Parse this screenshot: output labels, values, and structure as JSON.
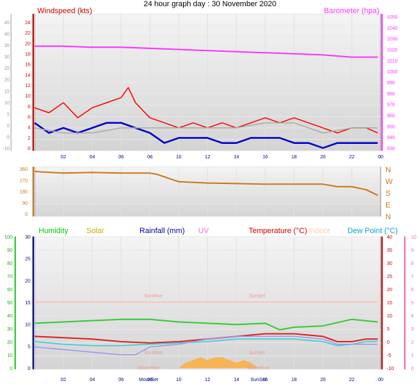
{
  "title": "24 hour graph day : 30 November 2020",
  "chart_data": [
    {
      "type": "line",
      "labels": {
        "left": "Windspeed (kts)",
        "right": "Barometer (hpa)"
      },
      "x_ticks": [
        "02",
        "04",
        "06",
        "08",
        "10",
        "12",
        "14",
        "16",
        "18",
        "20",
        "22",
        "00"
      ],
      "y_ticks_outer": [
        "45",
        "40",
        "35",
        "30",
        "25",
        "20",
        "15",
        "10",
        "5",
        "0",
        "-5",
        "-10"
      ],
      "y_ticks_wind": [
        "24",
        "22",
        "20",
        "18",
        "16",
        "14",
        "12",
        "10",
        "8",
        "6",
        "4",
        "2",
        "0"
      ],
      "y_ticks_baro": [
        "1050",
        "1040",
        "1030",
        "1020",
        "1010",
        "1000",
        "990",
        "980",
        "970",
        "960",
        "950",
        "940",
        "930"
      ],
      "ylim_wind": [
        0,
        25
      ],
      "ylim_baro": [
        930,
        1050
      ],
      "series": [
        {
          "name": "Barometer (hpa)",
          "color": "#ff33ff",
          "x": [
            0,
            2,
            4,
            6,
            8,
            10,
            12,
            14,
            16,
            18,
            20,
            22,
            23.8
          ],
          "values": [
            1023,
            1023,
            1022,
            1022,
            1021,
            1020,
            1019,
            1018,
            1017,
            1016,
            1015,
            1013,
            1013
          ]
        },
        {
          "color": "#ff0000",
          "x": [
            0,
            1,
            2,
            3,
            4,
            5,
            6,
            6.5,
            7,
            8,
            9,
            10,
            11,
            12,
            13,
            14,
            15,
            16,
            17,
            18,
            19,
            20,
            21,
            22,
            23,
            23.8
          ],
          "values": [
            8,
            7,
            9,
            6,
            8,
            9,
            10,
            12,
            9,
            6,
            5,
            4,
            5,
            4,
            5,
            4,
            5,
            6,
            5,
            6,
            5,
            4,
            3,
            4,
            4,
            3
          ]
        },
        {
          "color": "#0000cc",
          "x": [
            0,
            1,
            2,
            3,
            4,
            5,
            6,
            7,
            8,
            9,
            10,
            11,
            12,
            13,
            14,
            15,
            16,
            17,
            18,
            19,
            20,
            21,
            22,
            23,
            23.8
          ],
          "values": [
            5,
            3,
            4,
            3,
            4,
            5,
            5,
            4,
            3,
            1,
            2,
            2,
            2,
            1,
            1,
            2,
            2,
            2,
            1,
            1,
            0,
            1,
            1,
            1,
            1
          ]
        },
        {
          "color": "#aaaaaa",
          "x": [
            0,
            2,
            4,
            6,
            8,
            10,
            12,
            14,
            16,
            18,
            20,
            22,
            23.8
          ],
          "values": [
            4,
            3,
            3,
            4,
            4,
            4,
            4,
            4,
            5,
            5,
            3,
            4,
            4
          ]
        }
      ]
    },
    {
      "type": "line",
      "x_ticks": [
        "02",
        "04",
        "06",
        "08",
        "10",
        "12",
        "14",
        "16",
        "18",
        "20",
        "22",
        "00"
      ],
      "y_ticks": [
        "360",
        "270",
        "180",
        "90",
        "0"
      ],
      "directions": [
        "N",
        "W",
        "S",
        "E",
        "N"
      ],
      "ylim": [
        0,
        360
      ],
      "series": [
        {
          "color": "#cc7722",
          "x": [
            0,
            0.5,
            2,
            4,
            6,
            8,
            8.5,
            10,
            12,
            14,
            16,
            18,
            20,
            21,
            22,
            23,
            23.8
          ],
          "values": [
            345,
            340,
            330,
            335,
            330,
            330,
            320,
            260,
            250,
            245,
            240,
            240,
            240,
            220,
            220,
            195,
            150
          ]
        }
      ]
    },
    {
      "type": "line",
      "labels": {
        "humidity": "Humidity",
        "solar": "Solar",
        "rainfall": "Rainfall (mm)",
        "uv": "UV",
        "temperature": "Temperature (°C)",
        "indoor": "Indoor",
        "dewpoint": "Dew Point (°C)"
      },
      "label_colors": {
        "humidity": "#00cc00",
        "solar": "#ccaa00",
        "rainfall": "#000099",
        "uv": "#ff66cc",
        "temperature": "#cc0000",
        "indoor": "#ffccaa",
        "dewpoint": "#00aacc"
      },
      "x_ticks": [
        "02",
        "04",
        "06",
        "08",
        "10",
        "12",
        "14",
        "16",
        "18",
        "20",
        "22",
        "00"
      ],
      "annotations": {
        "moonset": "MoonSet",
        "sunset": "SunSet",
        "sunrise": "SunRise",
        "moonrise": "MoonRise"
      },
      "y_ticks_hum": [
        "100",
        "90",
        "80",
        "70",
        "60",
        "50",
        "40",
        "30",
        "20",
        "10",
        "0"
      ],
      "y_ticks_rain": [
        "30",
        "25",
        "20",
        "15",
        "10",
        "5",
        "0"
      ],
      "y_ticks_temp": [
        "40",
        "35",
        "30",
        "25",
        "20",
        "15",
        "10",
        "5",
        "0",
        "-5",
        "-10"
      ],
      "y_ticks_uv": [
        "10",
        "9",
        "8",
        "7",
        "6",
        "5",
        "4",
        "3",
        "2",
        "1",
        "0"
      ],
      "ylim_temp": [
        -10,
        40
      ],
      "series": [
        {
          "name": "Humidity",
          "color": "#33cc33",
          "x": [
            0,
            2,
            4,
            6,
            8,
            10,
            12,
            14,
            16,
            17,
            18,
            20,
            22,
            23.8
          ],
          "values": [
            34,
            35,
            36,
            37,
            37,
            35,
            34,
            33,
            34,
            29,
            31,
            32,
            37,
            35
          ]
        },
        {
          "name": "Indoor",
          "color": "#ffbbaa",
          "x": [
            0,
            23.8
          ],
          "values": [
            15,
            15
          ]
        },
        {
          "name": "Temperature (°C)",
          "color": "#dd2222",
          "x": [
            0,
            2,
            4,
            6,
            8,
            10,
            12,
            14,
            16,
            18,
            20,
            21,
            22,
            23,
            23.8
          ],
          "values": [
            2,
            1.5,
            1,
            0,
            -0.5,
            0,
            1,
            2,
            3,
            3,
            2,
            0,
            0,
            1,
            1
          ]
        },
        {
          "name": "Dew Point (°C)",
          "color": "#33ccdd",
          "x": [
            0,
            2,
            4,
            6,
            8,
            10,
            12,
            14,
            16,
            18,
            20,
            21,
            22,
            23,
            23.8
          ],
          "values": [
            0,
            -1,
            -1.5,
            -1.5,
            -1,
            -0.5,
            0,
            1,
            1,
            1,
            0,
            -1.5,
            -1,
            0,
            0
          ]
        },
        {
          "color": "#9999ee",
          "x": [
            0,
            2,
            4,
            6,
            7,
            8,
            10,
            12,
            14,
            16,
            18,
            20,
            21,
            22,
            23.8
          ],
          "values": [
            -2,
            -3,
            -4,
            -5,
            -5,
            -2,
            -1,
            1,
            2,
            2,
            2,
            1,
            -1,
            -1,
            -1
          ]
        },
        {
          "name": "Solar",
          "color": "#ffaa33",
          "x": [
            10,
            10.5,
            11,
            11.5,
            12,
            12.5,
            13,
            13.5,
            14,
            14.5,
            15,
            15.5
          ],
          "values": [
            -10,
            -8,
            -7,
            -6,
            -7,
            -6,
            -6,
            -7,
            -8,
            -7,
            -8,
            -10
          ]
        }
      ]
    }
  ]
}
